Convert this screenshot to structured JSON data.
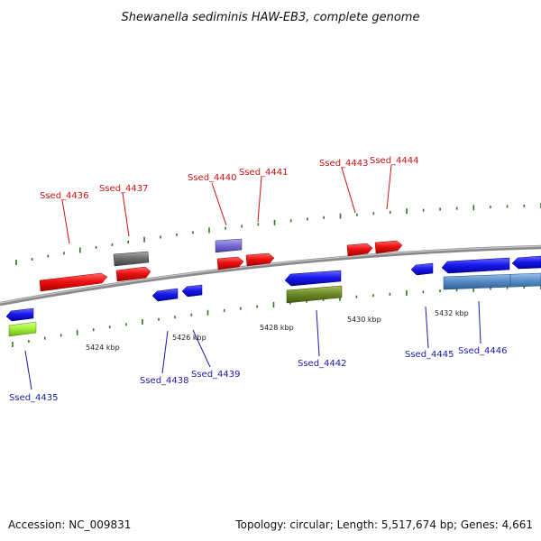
{
  "title": "Shewanella sediminis HAW-EB3, complete genome",
  "footer": {
    "accession": "Accession: NC_009831",
    "summary": "Topology: circular; Length: 5,517,674 bp; Genes: 4,661"
  },
  "colors": {
    "forward": "#ee1111",
    "reverse": "#1a1aee",
    "grey": "#707070",
    "purple": "#7b6fd8",
    "olive": "#6f8c2a",
    "lime": "#a4f23c",
    "steel": "#5a8fc8",
    "backbone": "#8a8a8a",
    "tick": "#2a7a1a",
    "label_forward": "#cc1111",
    "label_reverse": "#1a1aaa"
  },
  "axis": {
    "ticks": [
      "5424 kbp",
      "5426 kbp",
      "5428 kbp",
      "5430 kbp",
      "5432 kbp"
    ]
  },
  "genes": [
    {
      "id": "Ssed_4435",
      "strand": "reverse",
      "color": "reverse"
    },
    {
      "id": "Ssed_4436",
      "strand": "forward",
      "color": "forward"
    },
    {
      "id": "Ssed_4437",
      "strand": "forward",
      "color": "grey"
    },
    {
      "id": "Ssed_4438",
      "strand": "reverse",
      "color": "reverse"
    },
    {
      "id": "Ssed_4439",
      "strand": "reverse",
      "color": "reverse"
    },
    {
      "id": "Ssed_4440",
      "strand": "forward",
      "color": "purple"
    },
    {
      "id": "Ssed_4441",
      "strand": "forward",
      "color": "forward"
    },
    {
      "id": "Ssed_4442",
      "strand": "reverse",
      "color": "reverse"
    },
    {
      "id": "Ssed_4443",
      "strand": "forward",
      "color": "forward"
    },
    {
      "id": "Ssed_4444",
      "strand": "forward",
      "color": "forward"
    },
    {
      "id": "Ssed_4445",
      "strand": "reverse",
      "color": "reverse"
    },
    {
      "id": "Ssed_4446",
      "strand": "reverse",
      "color": "reverse"
    }
  ]
}
